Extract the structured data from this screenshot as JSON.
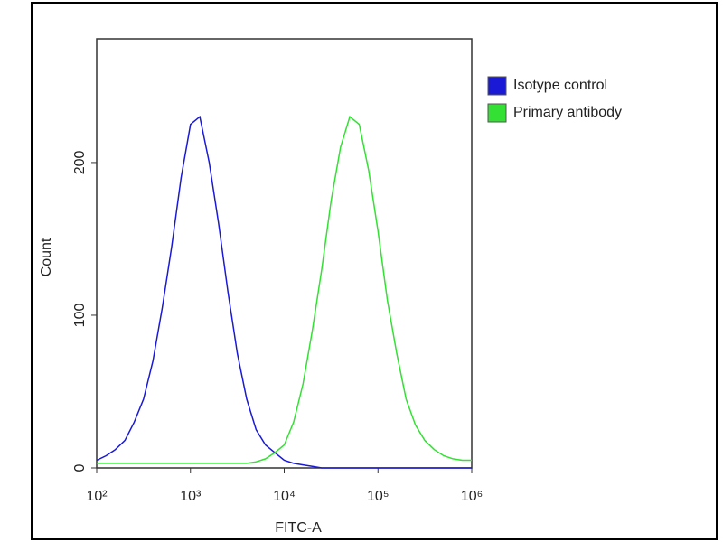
{
  "chart_data": {
    "type": "line",
    "xlabel": "FITC-A",
    "ylabel": "Count",
    "x": [
      100,
      126,
      158,
      200,
      251,
      316,
      398,
      501,
      631,
      794,
      1000,
      1259,
      1585,
      1995,
      2512,
      3162,
      3981,
      5012,
      6310,
      7943,
      10000,
      12589,
      15849,
      19953,
      25119,
      31623,
      39811,
      50119,
      63096,
      79433,
      100000,
      125893,
      158489,
      199526,
      251189,
      316228,
      398107,
      501187,
      630957,
      794328,
      1000000
    ],
    "series": [
      {
        "name": "Isotype control",
        "color": "#1a1ad6",
        "values": [
          5,
          8,
          12,
          18,
          30,
          45,
          70,
          105,
          145,
          190,
          225,
          230,
          200,
          160,
          115,
          75,
          45,
          25,
          15,
          10,
          5,
          3,
          2,
          1,
          0,
          0,
          0,
          0,
          0,
          0,
          0,
          0,
          0,
          0,
          0,
          0,
          0,
          0,
          0,
          0,
          0
        ]
      },
      {
        "name": "Primary antibody",
        "color": "#33e033",
        "values": [
          3,
          3,
          3,
          3,
          3,
          3,
          3,
          3,
          3,
          3,
          3,
          3,
          3,
          3,
          3,
          3,
          3,
          4,
          6,
          10,
          15,
          30,
          55,
          90,
          130,
          175,
          210,
          230,
          225,
          195,
          155,
          110,
          75,
          45,
          28,
          18,
          12,
          8,
          6,
          5,
          5
        ]
      }
    ],
    "xscale": "log",
    "xlim": [
      100,
      1000000
    ],
    "xticks": [
      {
        "value": 100,
        "label": "10²"
      },
      {
        "value": 1000,
        "label": "10³"
      },
      {
        "value": 10000,
        "label": "10⁴"
      },
      {
        "value": 100000,
        "label": "10⁵"
      },
      {
        "value": 1000000,
        "label": "10⁶"
      }
    ],
    "ylim": [
      0,
      281
    ],
    "yticks": [
      0,
      100,
      200
    ],
    "legend": "right"
  }
}
